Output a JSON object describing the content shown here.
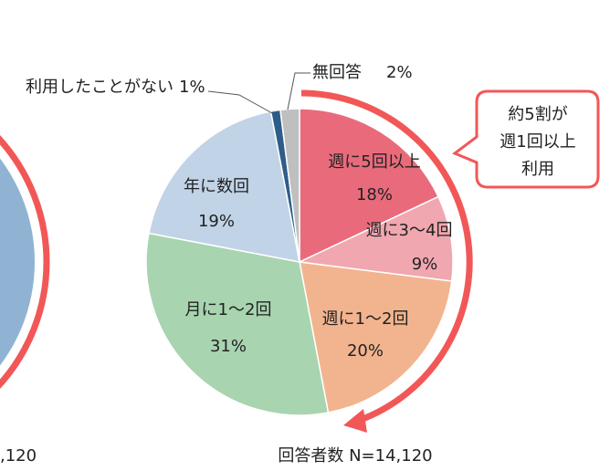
{
  "chart_data": {
    "type": "pie",
    "categories": [
      "週に5回以上",
      "週に3～4回",
      "週に1～2回",
      "月に1～2回",
      "年に数回",
      "利用したことがない",
      "無回答"
    ],
    "values": [
      18,
      9,
      20,
      31,
      19,
      1,
      2
    ],
    "value_labels": [
      "18%",
      "9%",
      "20%",
      "31%",
      "19%",
      "1%",
      "2%"
    ],
    "colors": [
      "#e96b7b",
      "#f0a7b0",
      "#f2b48f",
      "#a8d4b0",
      "#c1d3e6",
      "#2f5d8a",
      "#bfbfbf"
    ],
    "annotation": [
      "約5割が",
      "週1回以上",
      "利用"
    ],
    "footer": "回答者数 N=14,120",
    "left_fragment_label": ",120"
  }
}
